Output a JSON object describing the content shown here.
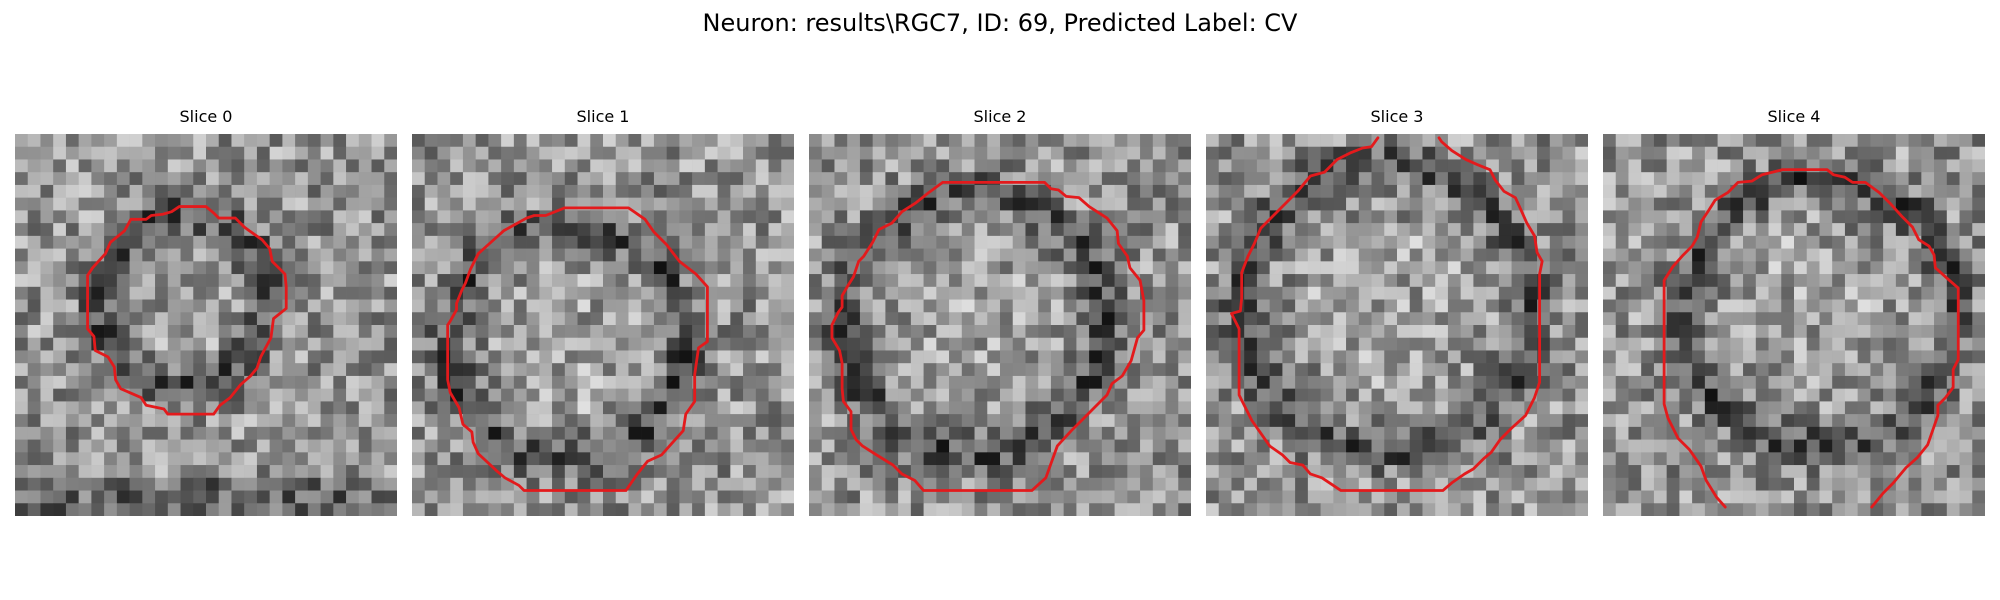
{
  "figure": {
    "title": "Neuron: results\\RGC7, ID: 69, Predicted Label: CV"
  },
  "contour_color": "#e31a1c",
  "slices": [
    {
      "title": "Slice 0"
    },
    {
      "title": "Slice 1"
    },
    {
      "title": "Slice 2"
    },
    {
      "title": "Slice 3"
    },
    {
      "title": "Slice 4"
    }
  ]
}
